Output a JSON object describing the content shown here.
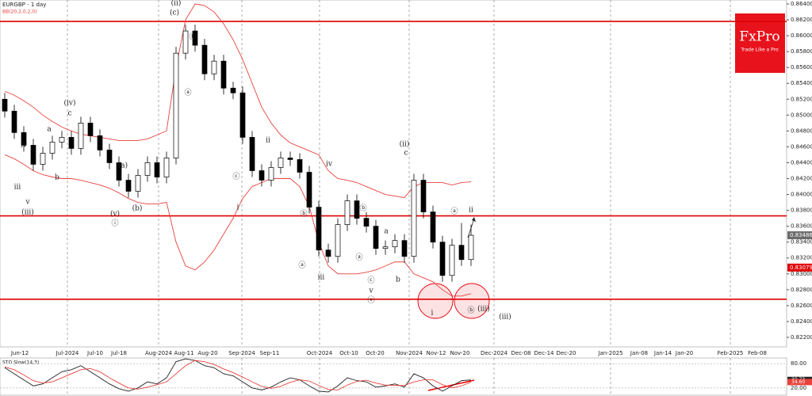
{
  "chart_data": {
    "type": "candlestick",
    "title": "EURGBP - 1 day",
    "indicator": "BB(20,2,0,2,0)",
    "logo": {
      "name": "FxPro",
      "tagline": "Trade Like a Pro",
      "color": "#e8121c"
    },
    "up_color": "#ffffff",
    "down_color": "#000000",
    "band_color": "#e8423c",
    "level_color": "#e00000",
    "open": [
      0.852,
      0.8505,
      0.8478,
      0.8462,
      0.8438,
      0.8452,
      0.8466,
      0.8472,
      0.8458,
      0.849,
      0.8474,
      0.8456,
      0.844,
      0.8418,
      0.8404,
      0.8424,
      0.844,
      0.8422,
      0.8446,
      0.8578,
      0.8606,
      0.8588,
      0.8552,
      0.8568,
      0.8534,
      0.8528,
      0.8472,
      0.843,
      0.8418,
      0.8434,
      0.8446,
      0.8444,
      0.8428,
      0.8384,
      0.833,
      0.8322,
      0.8362,
      0.8392,
      0.837,
      0.836,
      0.8332,
      0.8334,
      0.8342,
      0.8322,
      0.8418,
      0.8378,
      0.834,
      0.8298,
      0.8336,
      0.8318
    ],
    "high": [
      0.8528,
      0.8513,
      0.8486,
      0.847,
      0.846,
      0.8474,
      0.848,
      0.848,
      0.8498,
      0.8498,
      0.8482,
      0.8464,
      0.8448,
      0.8426,
      0.8432,
      0.8448,
      0.8448,
      0.8454,
      0.8586,
      0.8614,
      0.8614,
      0.8596,
      0.8576,
      0.8576,
      0.8542,
      0.8536,
      0.848,
      0.8438,
      0.8442,
      0.8454,
      0.8454,
      0.8452,
      0.8436,
      0.8392,
      0.8338,
      0.837,
      0.84,
      0.84,
      0.8378,
      0.8368,
      0.8342,
      0.835,
      0.835,
      0.8426,
      0.8426,
      0.8386,
      0.8348,
      0.8344,
      0.8364,
      0.8362
    ],
    "low": [
      0.8497,
      0.847,
      0.8454,
      0.843,
      0.843,
      0.8444,
      0.8458,
      0.845,
      0.845,
      0.8466,
      0.8448,
      0.8432,
      0.841,
      0.8396,
      0.8396,
      0.8416,
      0.8414,
      0.8414,
      0.8438,
      0.857,
      0.858,
      0.8544,
      0.8544,
      0.8526,
      0.852,
      0.8464,
      0.8422,
      0.841,
      0.841,
      0.8426,
      0.8436,
      0.842,
      0.8376,
      0.8322,
      0.8314,
      0.8314,
      0.8354,
      0.8362,
      0.8352,
      0.8324,
      0.8324,
      0.8326,
      0.8314,
      0.8314,
      0.837,
      0.8332,
      0.829,
      0.829,
      0.831,
      0.831
    ],
    "close": [
      0.8505,
      0.8478,
      0.8462,
      0.8438,
      0.8452,
      0.8466,
      0.8472,
      0.8458,
      0.849,
      0.8474,
      0.8456,
      0.844,
      0.8418,
      0.8404,
      0.8424,
      0.844,
      0.8422,
      0.8446,
      0.8578,
      0.8606,
      0.8588,
      0.8552,
      0.8568,
      0.8534,
      0.8528,
      0.8472,
      0.843,
      0.8418,
      0.8434,
      0.8446,
      0.8444,
      0.8428,
      0.8384,
      0.833,
      0.8322,
      0.8362,
      0.8392,
      0.837,
      0.836,
      0.8332,
      0.8334,
      0.8342,
      0.8322,
      0.8418,
      0.8378,
      0.834,
      0.8298,
      0.8336,
      0.8318,
      0.83486
    ],
    "bb_upper": [
      0.853,
      0.8525,
      0.8518,
      0.851,
      0.85,
      0.8492,
      0.8485,
      0.848,
      0.8476,
      0.8474,
      0.8472,
      0.847,
      0.8468,
      0.8468,
      0.8468,
      0.847,
      0.8475,
      0.848,
      0.856,
      0.862,
      0.864,
      0.8638,
      0.863,
      0.8615,
      0.8595,
      0.857,
      0.854,
      0.851,
      0.849,
      0.8475,
      0.8465,
      0.846,
      0.8455,
      0.845,
      0.843,
      0.842,
      0.8418,
      0.8415,
      0.841,
      0.8405,
      0.84,
      0.8398,
      0.8396,
      0.841,
      0.8415,
      0.8415,
      0.8415,
      0.8412,
      0.8415,
      0.8416
    ],
    "bb_lower": [
      0.845,
      0.8445,
      0.8438,
      0.843,
      0.8425,
      0.8422,
      0.842,
      0.842,
      0.8418,
      0.8415,
      0.8412,
      0.8408,
      0.8402,
      0.8395,
      0.839,
      0.8388,
      0.8388,
      0.839,
      0.834,
      0.831,
      0.8305,
      0.8315,
      0.833,
      0.835,
      0.837,
      0.8395,
      0.841,
      0.8415,
      0.842,
      0.842,
      0.842,
      0.841,
      0.8385,
      0.834,
      0.831,
      0.83,
      0.83,
      0.83,
      0.8302,
      0.8305,
      0.831,
      0.8315,
      0.8315,
      0.83,
      0.8295,
      0.829,
      0.828,
      0.8272,
      0.8272,
      0.8275
    ],
    "levels": [
      0.8618,
      0.8373,
      0.8268
    ],
    "ylim": [
      0.8198,
      0.8645
    ],
    "yticks": [
      {
        "value": 0.864,
        "label": "0.86400"
      },
      {
        "value": 0.862,
        "label": "0.86200"
      },
      {
        "value": 0.86,
        "label": "0.86000"
      },
      {
        "value": 0.858,
        "label": "0.85800"
      },
      {
        "value": 0.856,
        "label": "0.85600"
      },
      {
        "value": 0.854,
        "label": "0.85400"
      },
      {
        "value": 0.852,
        "label": "0.85200"
      },
      {
        "value": 0.85,
        "label": "0.85000"
      },
      {
        "value": 0.848,
        "label": "0.84800"
      },
      {
        "value": 0.846,
        "label": "0.84600"
      },
      {
        "value": 0.844,
        "label": "0.84400"
      },
      {
        "value": 0.842,
        "label": "0.84200"
      },
      {
        "value": 0.84,
        "label": "0.84000"
      },
      {
        "value": 0.838,
        "label": "0.83800"
      },
      {
        "value": 0.836,
        "label": "0.83600"
      },
      {
        "value": 0.834,
        "label": "0.83400"
      },
      {
        "value": 0.832,
        "label": "0.83200"
      },
      {
        "value": 0.83,
        "label": "0.83000"
      },
      {
        "value": 0.828,
        "label": "0.82800"
      },
      {
        "value": 0.826,
        "label": "0.82600"
      },
      {
        "value": 0.824,
        "label": "0.82400"
      },
      {
        "value": 0.822,
        "label": "0.82200"
      }
    ],
    "price_tags": [
      {
        "value": 0.83486,
        "label": "0.83486",
        "color": "#6b6b6b"
      },
      {
        "value": 0.83079,
        "label": "0.83079",
        "color": "#e00000"
      }
    ],
    "x_labels": [
      "Jun-12",
      "Jul-2024",
      "Jul-10",
      "Jul-18",
      "Aug-2024",
      "Aug-11",
      "Aug-20",
      "Sep-2024",
      "Sep-11",
      "Oct-2024",
      "Oct-10",
      "Oct-20",
      "Nov-2024",
      "Nov-12",
      "Nov-20",
      "Dec-2024",
      "Dec-08",
      "Dec-14",
      "Dec-20",
      "Jan-2025",
      "Jan-08",
      "Jan-14",
      "Jan-20",
      "Feb-2025",
      "Feb-08"
    ],
    "wave_labels": [
      "(iii)",
      "iv",
      "(iv)",
      "a",
      "b",
      "c",
      "v",
      "(v)",
      "ⓘ",
      "(a)",
      "(b)",
      "(c)",
      "(ii)",
      "ⓑ",
      "ⓐ",
      "ⓒ",
      "i",
      "ii",
      "iv",
      "iii",
      "ⓑ",
      "ⓐ",
      "ⓑ",
      "ⓐ",
      "a",
      "b",
      "ⓒ",
      "v",
      "ⓥ",
      "(ii)",
      "c",
      "i",
      "ⓐ",
      "ii",
      "ⓑ",
      "(iii)",
      "(iii)",
      "iii"
    ],
    "stochastic": {
      "title": "STO Slow(14,3)",
      "ylim": [
        0,
        100
      ],
      "yticks": [
        {
          "value": 80,
          "label": "80.00"
        },
        {
          "value": 20,
          "label": "20.00"
        }
      ],
      "series": [
        {
          "name": "%K",
          "color": "#222222",
          "values": [
            70,
            55,
            40,
            25,
            30,
            45,
            60,
            65,
            75,
            60,
            45,
            30,
            18,
            12,
            20,
            35,
            30,
            45,
            85,
            92,
            88,
            75,
            70,
            55,
            50,
            35,
            20,
            15,
            22,
            35,
            45,
            40,
            25,
            12,
            10,
            25,
            45,
            38,
            35,
            22,
            25,
            30,
            22,
            55,
            45,
            25,
            12,
            25,
            38,
            39.73
          ]
        },
        {
          "name": "%D",
          "color": "#e8423c",
          "values": [
            72,
            65,
            52,
            38,
            32,
            35,
            45,
            55,
            65,
            68,
            60,
            45,
            32,
            20,
            17,
            22,
            28,
            35,
            55,
            75,
            88,
            85,
            78,
            67,
            58,
            47,
            35,
            24,
            19,
            24,
            34,
            40,
            37,
            26,
            16,
            15,
            27,
            36,
            39,
            32,
            27,
            26,
            26,
            35,
            40,
            40,
            28,
            20,
            25,
            34.6
          ]
        }
      ],
      "tags": [
        {
          "value": 39.73,
          "label": "39.73"
        },
        {
          "value": 34.6,
          "label": "34.60"
        }
      ]
    }
  }
}
